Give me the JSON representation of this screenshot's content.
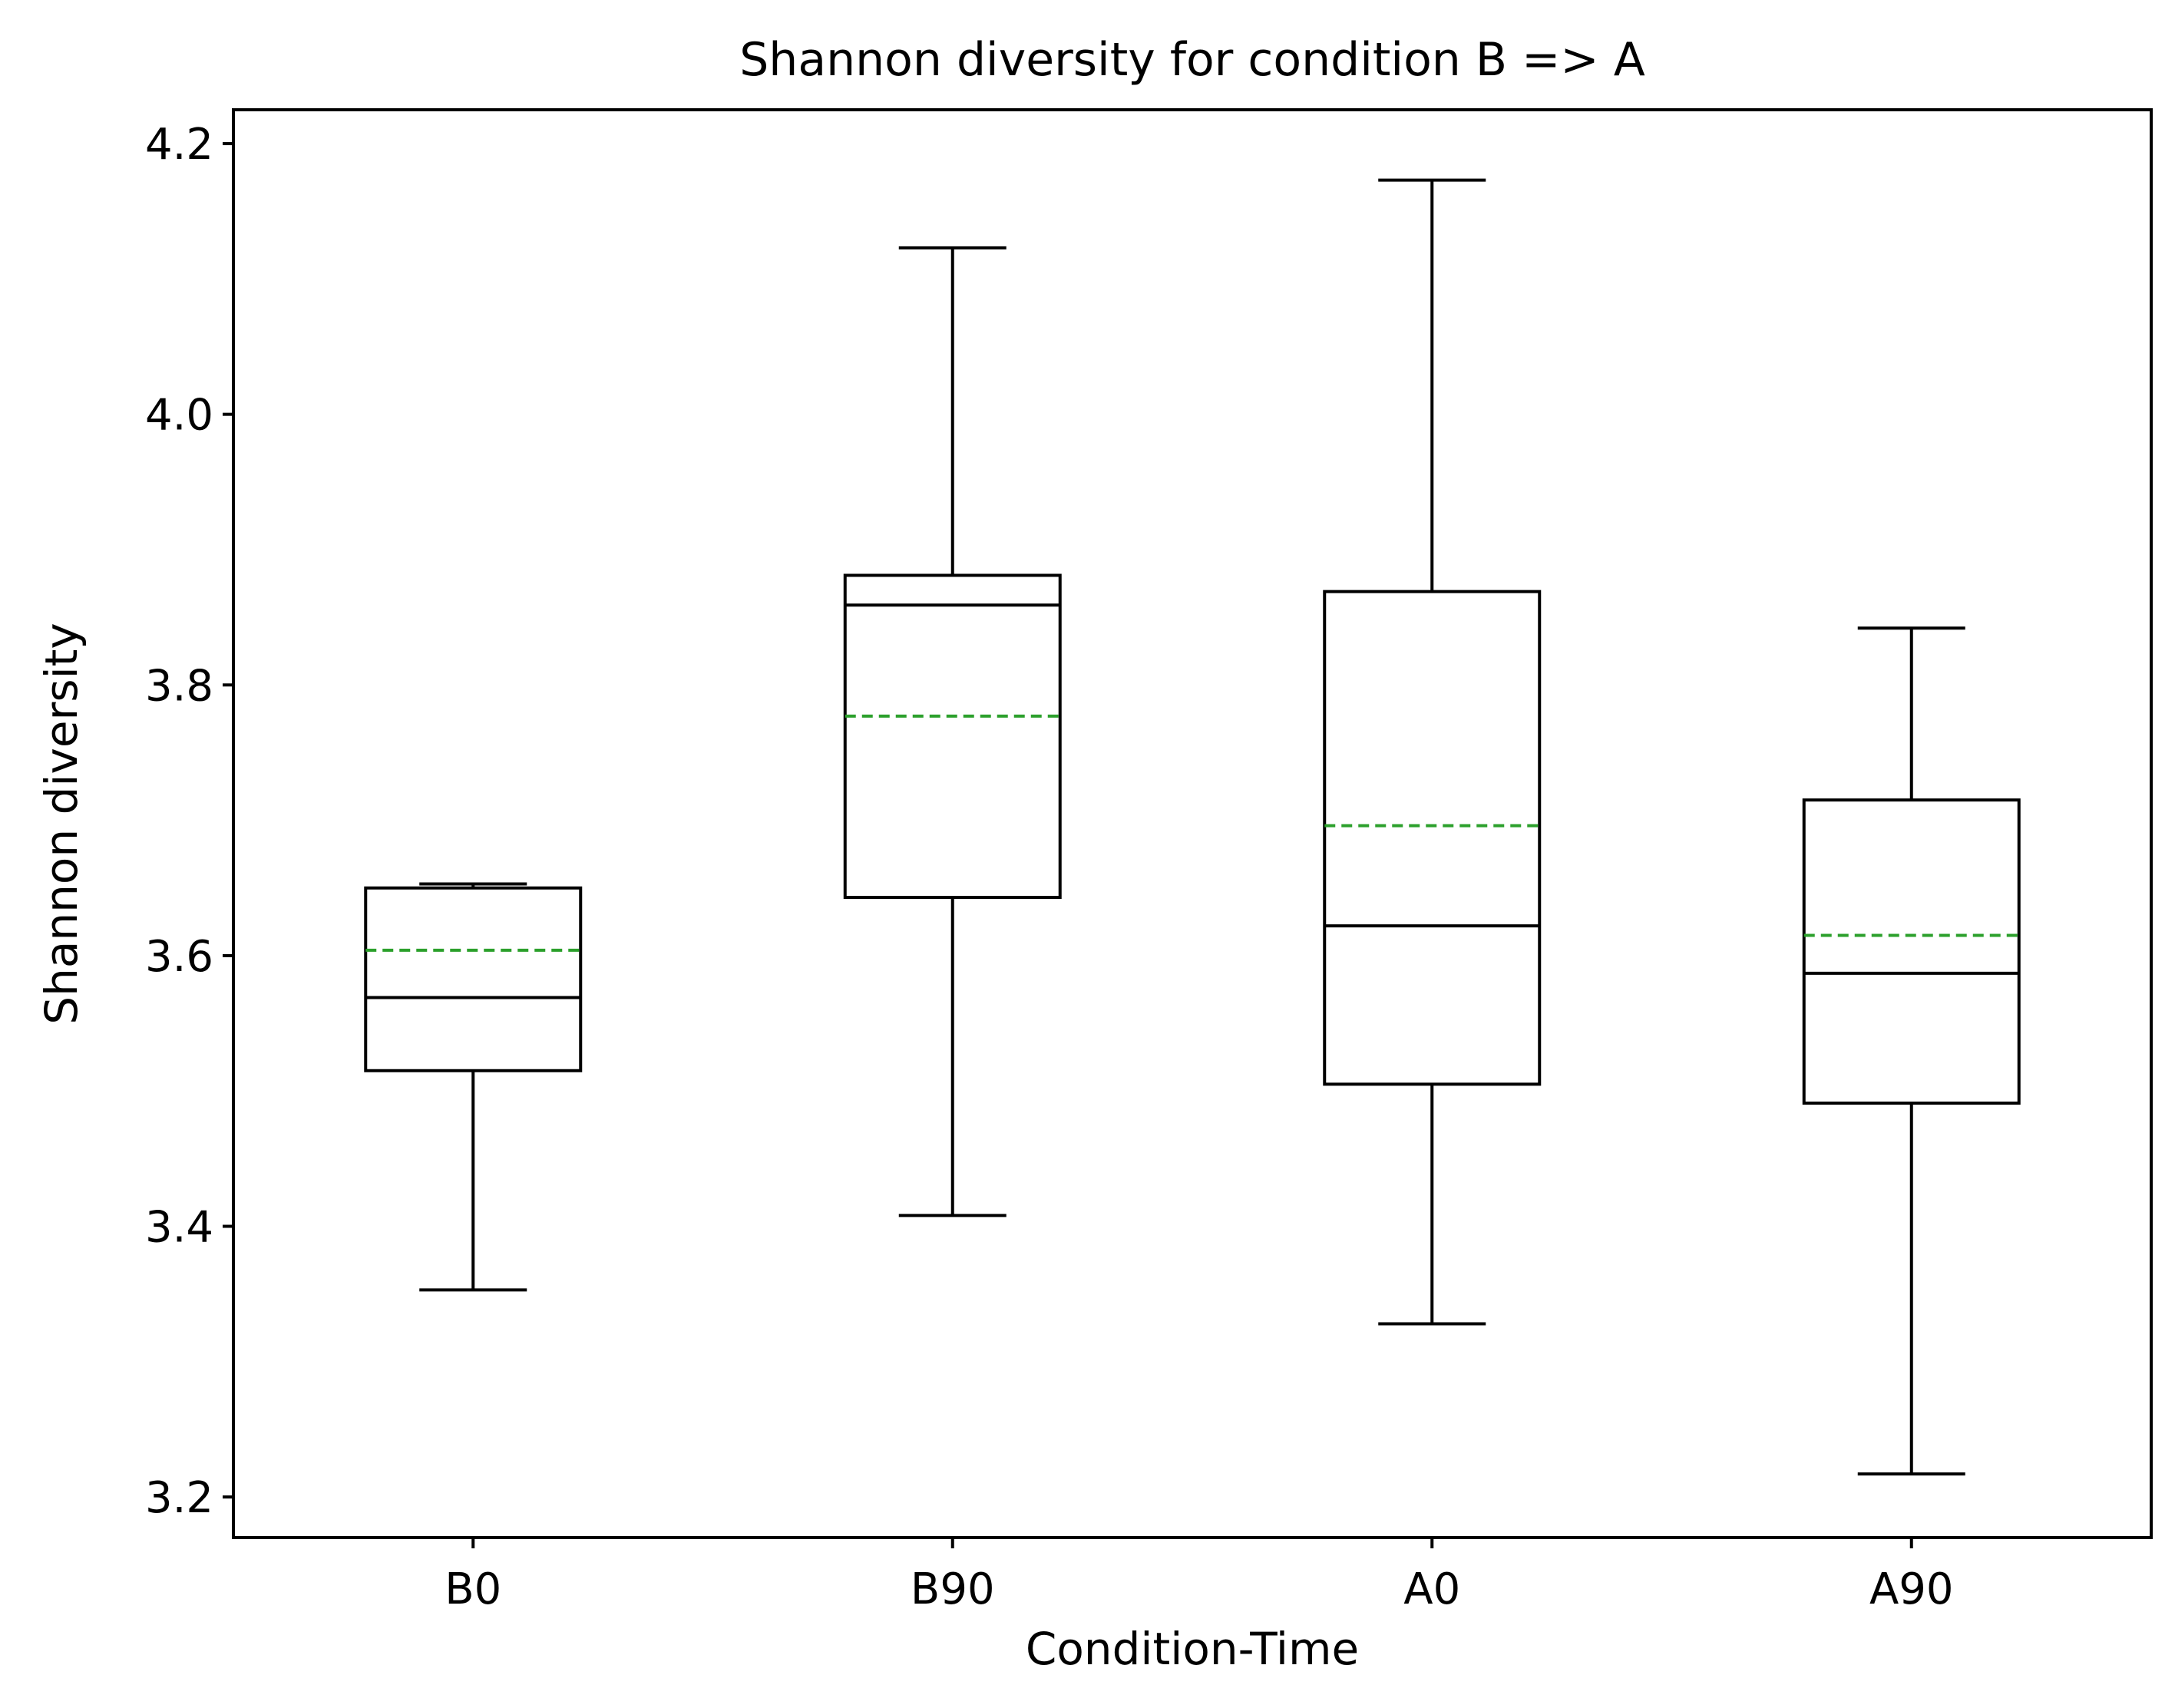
{
  "chart_data": {
    "type": "box",
    "title": "Shannon diversity for condition B => A",
    "xlabel": "Condition-Time",
    "ylabel": "Shannon diversity",
    "ylim": [
      3.17,
      4.225
    ],
    "yticks": [
      3.2,
      3.4,
      3.6,
      3.8,
      4.0,
      4.2
    ],
    "ytick_labels": [
      "3.2",
      "3.4",
      "3.6",
      "3.8",
      "4.0",
      "4.2"
    ],
    "grid": false,
    "categories": [
      "B0",
      "B90",
      "A0",
      "A90"
    ],
    "boxes": [
      {
        "label": "B0",
        "whisker_low": 3.353,
        "q1": 3.515,
        "median": 3.569,
        "q3": 3.65,
        "whisker_high": 3.653,
        "mean": 3.604
      },
      {
        "label": "B90",
        "whisker_low": 3.408,
        "q1": 3.643,
        "median": 3.859,
        "q3": 3.881,
        "whisker_high": 4.123,
        "mean": 3.777
      },
      {
        "label": "A0",
        "whisker_low": 3.328,
        "q1": 3.505,
        "median": 3.622,
        "q3": 3.869,
        "whisker_high": 4.173,
        "mean": 3.696
      },
      {
        "label": "A90",
        "whisker_low": 3.217,
        "q1": 3.491,
        "median": 3.587,
        "q3": 3.715,
        "whisker_high": 3.842,
        "mean": 3.615
      }
    ],
    "colors": {
      "box": "#000000",
      "median": "#000000",
      "mean": "#2ca02c"
    }
  }
}
